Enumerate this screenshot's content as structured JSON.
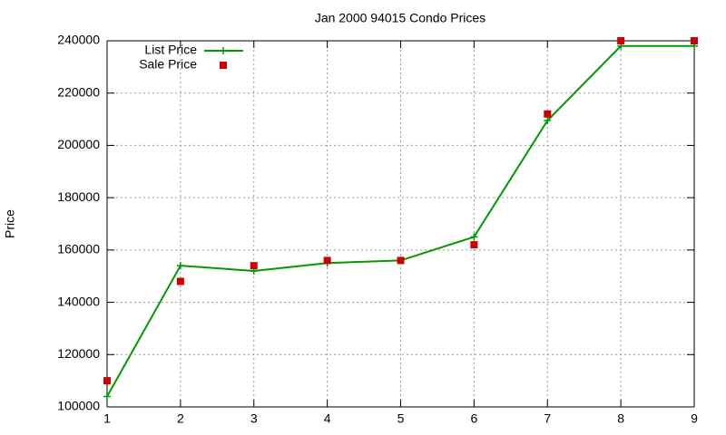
{
  "chart_data": {
    "type": "line",
    "title": "Jan 2000 94015 Condo Prices",
    "y_label": "Price",
    "x": [
      1,
      2,
      3,
      4,
      5,
      6,
      7,
      8,
      9
    ],
    "series": [
      {
        "name": "List Price",
        "color": "#009900",
        "mode": "linespoints",
        "values": [
          104000,
          154000,
          152000,
          155000,
          156000,
          165000,
          209500,
          238000,
          238000
        ]
      },
      {
        "name": "Sale Price",
        "color": "#cc0000",
        "mode": "points",
        "values": [
          110000,
          148000,
          154000,
          156000,
          156000,
          162000,
          212000,
          240000,
          240000
        ]
      }
    ],
    "xlim": [
      1,
      9
    ],
    "xticks": [
      1,
      2,
      3,
      4,
      5,
      6,
      7,
      8,
      9
    ],
    "ylim": [
      100000,
      240000
    ],
    "yticks": [
      100000,
      120000,
      140000,
      160000,
      180000,
      200000,
      220000,
      240000
    ],
    "grid": true,
    "legend": "top-left"
  }
}
